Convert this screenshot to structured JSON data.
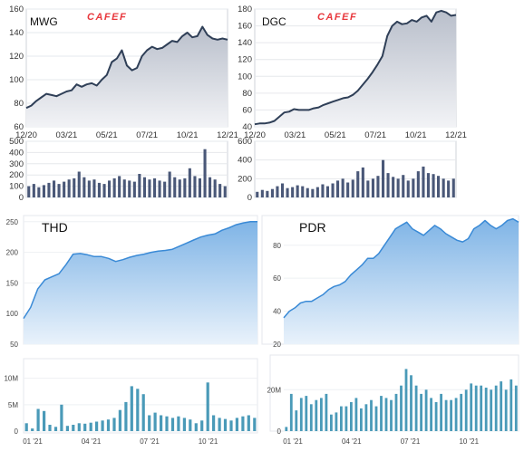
{
  "chart_data": [
    {
      "type": "area",
      "title": "MWG",
      "logo": "CAFEF",
      "style": "dark",
      "x_labels": [
        "12/20",
        "03/21",
        "05/21",
        "07/21",
        "10/21",
        "12/21"
      ],
      "y_ticks": [
        60,
        80,
        100,
        120,
        140,
        160
      ],
      "ylim": [
        60,
        160
      ],
      "series": [
        {
          "values": [
            76,
            78,
            82,
            85,
            88,
            87,
            86,
            88,
            90,
            91,
            96,
            94,
            96,
            97,
            95,
            100,
            104,
            115,
            118,
            125,
            112,
            108,
            110,
            120,
            125,
            128,
            126,
            127,
            130,
            133,
            132,
            137,
            140,
            136,
            137,
            145,
            138,
            135,
            134,
            135,
            134
          ]
        }
      ],
      "volume": {
        "y_ticks": [
          0,
          100,
          200,
          300,
          400,
          500
        ],
        "ylim": [
          0,
          500
        ],
        "values": [
          100,
          120,
          90,
          110,
          130,
          150,
          120,
          140,
          160,
          170,
          230,
          180,
          150,
          160,
          130,
          120,
          150,
          170,
          190,
          160,
          150,
          140,
          210,
          180,
          160,
          170,
          150,
          140,
          230,
          180,
          160,
          170,
          260,
          190,
          170,
          430,
          180,
          160,
          120,
          100
        ]
      }
    },
    {
      "type": "area",
      "title": "DGC",
      "logo": "CAFEF",
      "style": "dark",
      "x_labels": [
        "12/20",
        "03/21",
        "05/21",
        "07/21",
        "10/21",
        "12/21"
      ],
      "y_ticks": [
        40,
        60,
        80,
        100,
        120,
        140,
        160,
        180
      ],
      "ylim": [
        40,
        180
      ],
      "series": [
        {
          "values": [
            43,
            44,
            44,
            45,
            47,
            52,
            57,
            58,
            61,
            60,
            60,
            60,
            62,
            63,
            66,
            68,
            70,
            72,
            74,
            75,
            78,
            83,
            90,
            97,
            105,
            114,
            124,
            148,
            160,
            165,
            162,
            163,
            167,
            165,
            170,
            172,
            165,
            176,
            178,
            176,
            172,
            173
          ]
        }
      ],
      "volume": {
        "y_ticks": [
          0,
          200,
          400,
          600
        ],
        "ylim": [
          0,
          600
        ],
        "values": [
          60,
          80,
          70,
          90,
          120,
          150,
          100,
          110,
          130,
          120,
          100,
          90,
          110,
          140,
          120,
          150,
          180,
          200,
          160,
          190,
          280,
          320,
          180,
          200,
          230,
          400,
          260,
          220,
          200,
          240,
          180,
          200,
          280,
          330,
          260,
          250,
          230,
          200,
          180,
          200
        ]
      }
    },
    {
      "type": "area",
      "title": "THD",
      "style": "light",
      "x_labels": [
        "01 '21",
        "04 '21",
        "07 '21",
        "10 '21"
      ],
      "y_ticks": [
        50,
        100,
        150,
        200,
        250
      ],
      "ylim": [
        50,
        260
      ],
      "series": [
        {
          "values": [
            92,
            110,
            140,
            155,
            160,
            165,
            180,
            197,
            198,
            196,
            193,
            193,
            190,
            185,
            188,
            192,
            195,
            197,
            200,
            202,
            203,
            205,
            210,
            215,
            220,
            225,
            228,
            230,
            236,
            240,
            245,
            248,
            250,
            250
          ]
        }
      ],
      "volume": {
        "y_ticks_labels": [
          "0",
          "5M",
          "10M"
        ],
        "y_ticks": [
          0,
          5,
          10
        ],
        "ylim": [
          0,
          12
        ],
        "values": [
          1.5,
          0.5,
          4.2,
          3.8,
          1.2,
          0.8,
          5.0,
          1.0,
          1.2,
          1.5,
          1.4,
          1.6,
          1.8,
          2.0,
          2.2,
          2.5,
          4.0,
          5.5,
          8.5,
          8.0,
          7.0,
          3.0,
          3.5,
          3.0,
          2.8,
          2.5,
          2.8,
          2.5,
          2.2,
          1.5,
          2.0,
          9.2,
          3.0,
          2.5,
          2.3,
          2.0,
          2.5,
          2.8,
          3.0,
          2.5
        ]
      }
    },
    {
      "type": "area",
      "title": "PDR",
      "style": "light",
      "x_labels": [
        "01 '21",
        "04 '21",
        "07 '21",
        "10 '21"
      ],
      "y_ticks": [
        20,
        40,
        60,
        80
      ],
      "ylim": [
        20,
        98
      ],
      "series": [
        {
          "values": [
            36,
            40,
            42,
            45,
            46,
            46,
            48,
            50,
            53,
            55,
            56,
            58,
            62,
            65,
            68,
            72,
            72,
            75,
            80,
            85,
            90,
            92,
            94,
            90,
            88,
            86,
            89,
            92,
            90,
            87,
            85,
            83,
            82,
            84,
            90,
            92,
            95,
            92,
            90,
            92,
            95,
            96,
            94
          ]
        }
      ],
      "volume": {
        "y_ticks_labels": [
          "0",
          "20M"
        ],
        "y_ticks": [
          0,
          20
        ],
        "ylim": [
          0,
          35
        ],
        "values": [
          2,
          18,
          10,
          16,
          17,
          13,
          15,
          16,
          18,
          8,
          9,
          12,
          12,
          14,
          16,
          11,
          13,
          15,
          12,
          17,
          16,
          15,
          18,
          22,
          30,
          27,
          22,
          18,
          20,
          16,
          14,
          18,
          15,
          15,
          16,
          18,
          20,
          23,
          22,
          22,
          21,
          20,
          22,
          24,
          20,
          25,
          22
        ]
      }
    }
  ]
}
